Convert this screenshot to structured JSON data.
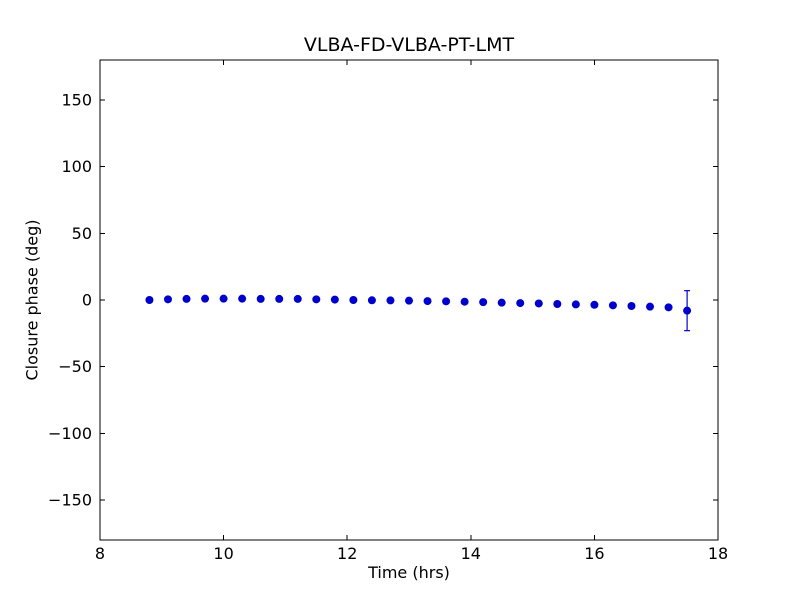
{
  "chart": {
    "title": "VLBA-FD-VLBA-PT-LMT",
    "xlabel": "Time (hrs)",
    "ylabel": "Closure phase (deg)"
  },
  "chart_data": {
    "type": "scatter",
    "title": "VLBA-FD-VLBA-PT-LMT",
    "xlabel": "Time (hrs)",
    "ylabel": "Closure phase (deg)",
    "xlim": [
      8,
      18
    ],
    "ylim": [
      -180,
      180
    ],
    "xticks": [
      8,
      10,
      12,
      14,
      16,
      18
    ],
    "yticks": [
      -150,
      -100,
      -50,
      0,
      50,
      100,
      150
    ],
    "grid": false,
    "legend_position": "none",
    "marker": "circle",
    "marker_color": "#0000cc",
    "x": [
      8.8,
      9.1,
      9.4,
      9.7,
      10.0,
      10.3,
      10.6,
      10.9,
      11.2,
      11.5,
      11.8,
      12.1,
      12.4,
      12.7,
      13.0,
      13.3,
      13.6,
      13.9,
      14.2,
      14.5,
      14.8,
      15.1,
      15.4,
      15.7,
      16.0,
      16.3,
      16.6,
      16.9,
      17.2,
      17.5
    ],
    "y": [
      0.0,
      0.5,
      0.8,
      1.0,
      1.0,
      1.0,
      0.8,
      0.8,
      0.8,
      0.5,
      0.3,
      0.0,
      -0.2,
      -0.3,
      -0.5,
      -0.8,
      -1.0,
      -1.3,
      -1.6,
      -2.0,
      -2.3,
      -2.6,
      -3.0,
      -3.3,
      -3.6,
      -4.0,
      -4.5,
      -5.0,
      -5.5,
      -8.0
    ],
    "yerr": [
      1.0,
      1.0,
      1.0,
      1.0,
      1.0,
      1.0,
      1.0,
      1.0,
      1.0,
      1.0,
      1.0,
      1.0,
      1.0,
      1.0,
      1.0,
      1.0,
      1.0,
      1.0,
      1.0,
      1.0,
      1.0,
      1.0,
      1.0,
      1.0,
      1.0,
      1.0,
      1.0,
      1.0,
      1.0,
      15.0
    ]
  }
}
